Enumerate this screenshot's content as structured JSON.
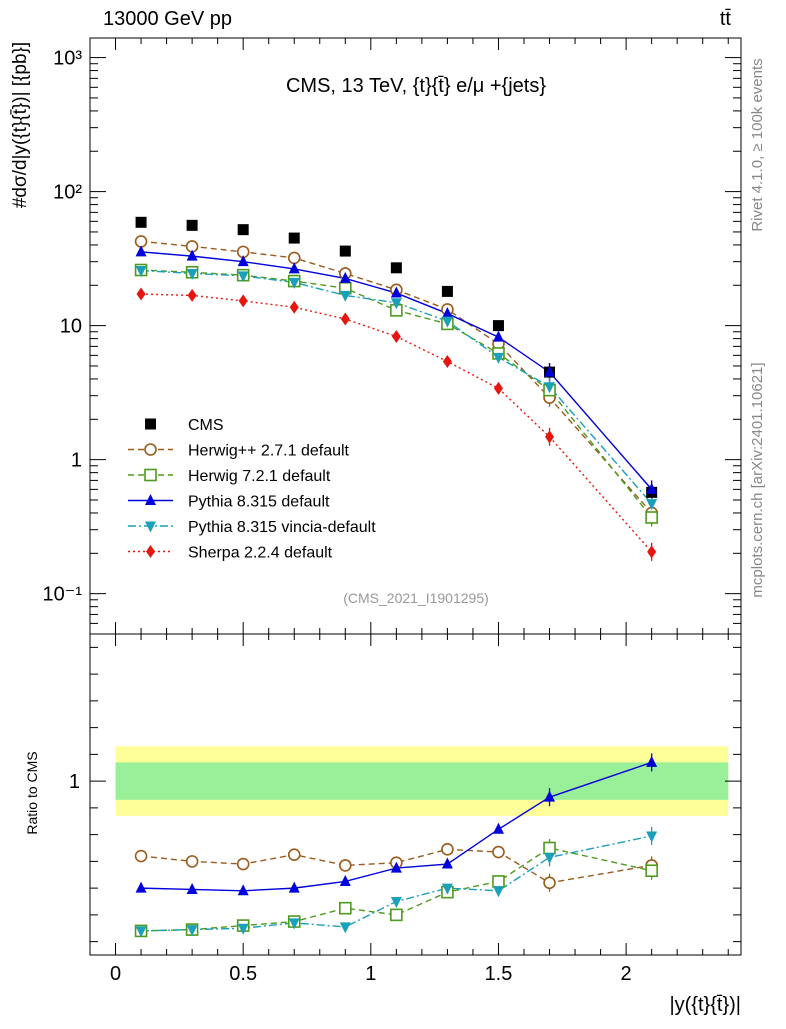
{
  "header": {
    "left": "13000 GeV pp",
    "right": "tt̄"
  },
  "side_labels": {
    "rivet": "Rivet 4.1.0, ≥ 100k events",
    "mcplots": "mcplots.cern.ch [arXiv:2401.10621]"
  },
  "chart_data": [
    {
      "type": "line",
      "title": "CMS, 13 TeV, {t}{t̄} e/μ +{jets}",
      "analysis_tag": "(CMS_2021_I1901295)",
      "ylabel": "#dσ/d|y({t}{t̄})| [{pb}]",
      "yscale": "log",
      "ylim": [
        0.05,
        1400
      ],
      "xlim": [
        -0.1,
        2.45
      ],
      "y_ticks": [
        0.1,
        1,
        10,
        100,
        1000
      ],
      "y_tick_labels": [
        "10⁻¹",
        "1",
        "10",
        "10²",
        "10³"
      ],
      "x": [
        0.1,
        0.3,
        0.5,
        0.7,
        0.9,
        1.1,
        1.3,
        1.5,
        1.7,
        2.1
      ],
      "series": [
        {
          "name": "CMS",
          "color": "#000000",
          "marker": "square-filled",
          "line": "none",
          "values": [
            59,
            56,
            52,
            45,
            36,
            27,
            18,
            10,
            4.5,
            0.57
          ]
        },
        {
          "name": "Herwig++ 2.7.1 default",
          "color": "#9a5b1c",
          "marker": "circle-open",
          "line": "dashed",
          "values": [
            42.5,
            39,
            35.5,
            32,
            24.5,
            18.5,
            13.2,
            7.3,
            2.9,
            0.4
          ]
        },
        {
          "name": "Herwig 7.2.1 default",
          "color": "#4e9a1c",
          "marker": "square-open",
          "line": "dashed",
          "values": [
            26,
            25,
            23.8,
            21.5,
            19,
            13,
            10.3,
            6.2,
            3.3,
            0.37
          ]
        },
        {
          "name": "Pythia 8.315 default",
          "color": "#0000dd",
          "marker": "triangle-up-filled",
          "line": "solid",
          "values": [
            35.5,
            33,
            30,
            26.5,
            22.5,
            17.5,
            12.3,
            8.2,
            4.5,
            0.6
          ]
        },
        {
          "name": "Pythia 8.315 vincia-default",
          "color": "#1aa0b8",
          "marker": "triangle-down-filled",
          "line": "dashdot",
          "values": [
            25.8,
            24.5,
            23.5,
            21,
            16.8,
            14.8,
            10.8,
            5.8,
            3.5,
            0.47
          ]
        },
        {
          "name": "Sherpa 2.2.4 default",
          "color": "#e8150f",
          "marker": "diamond-filled",
          "line": "dotted",
          "values": [
            17.2,
            16.8,
            15.3,
            13.7,
            11.2,
            8.3,
            5.4,
            3.4,
            1.48,
            0.205
          ]
        }
      ]
    },
    {
      "type": "line",
      "ylabel": "Ratio to CMS",
      "xlabel": "|y({t}{t̄})|",
      "ylim": [
        0.35,
        1.55
      ],
      "xlim": [
        -0.1,
        2.45
      ],
      "x_ticks": [
        0,
        0.5,
        1,
        1.5,
        2
      ],
      "x_tick_labels": [
        "0",
        "0.5",
        "1",
        "1.5",
        "2"
      ],
      "y_tick_label": "1",
      "band_inner": [
        0.93,
        1.07
      ],
      "band_outer": [
        0.87,
        1.13
      ],
      "x": [
        0.1,
        0.3,
        0.5,
        0.7,
        0.9,
        1.1,
        1.3,
        1.5,
        1.7,
        2.1
      ],
      "series": [
        {
          "name": "Herwig++ 2.7.1 default",
          "color": "#9a5b1c",
          "marker": "circle-open",
          "line": "dashed",
          "values": [
            0.72,
            0.7,
            0.69,
            0.725,
            0.685,
            0.695,
            0.745,
            0.735,
            0.62,
            0.685
          ]
        },
        {
          "name": "Herwig 7.2.1 default",
          "color": "#4e9a1c",
          "marker": "square-open",
          "line": "dashed",
          "values": [
            0.44,
            0.445,
            0.46,
            0.475,
            0.525,
            0.5,
            0.585,
            0.625,
            0.75,
            0.665
          ]
        },
        {
          "name": "Pythia 8.315 default",
          "color": "#0000dd",
          "marker": "triangle-up-filled",
          "line": "solid",
          "values": [
            0.6,
            0.595,
            0.59,
            0.6,
            0.625,
            0.675,
            0.69,
            0.82,
            0.94,
            1.07
          ]
        },
        {
          "name": "Pythia 8.315 vincia-default",
          "color": "#1aa0b8",
          "marker": "triangle-down-filled",
          "line": "dashdot",
          "values": [
            0.44,
            0.445,
            0.45,
            0.47,
            0.455,
            0.55,
            0.6,
            0.59,
            0.715,
            0.795
          ]
        }
      ]
    }
  ]
}
